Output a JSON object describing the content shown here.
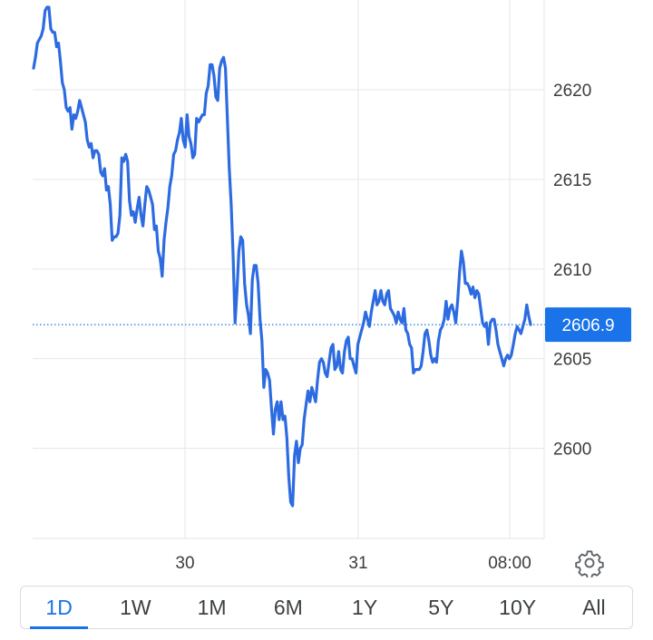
{
  "chart_data": {
    "type": "line",
    "x_tick_labels": [
      "30",
      "31",
      "08:00"
    ],
    "y_ticks": [
      2600,
      2605,
      2610,
      2615,
      2620
    ],
    "ylim": [
      2595,
      2624.8
    ],
    "grid": true,
    "current_price": 2606.9,
    "current_price_label": "2606.9",
    "line_color": "#2d6be0",
    "tag_color": "#1a73e8",
    "series": [
      {
        "values": [
          2621.2,
          2621.8,
          2622.6,
          2622.8,
          2623.0,
          2623.4,
          2624.4,
          2624.6,
          2624.6,
          2623.4,
          2623.2,
          2623.2,
          2622.4,
          2622.6,
          2621.6,
          2620.4,
          2620.0,
          2619.0,
          2618.8,
          2619.0,
          2617.8,
          2618.6,
          2618.4,
          2618.8,
          2619.4,
          2619.0,
          2618.6,
          2618.2,
          2617.2,
          2616.8,
          2617.0,
          2616.2,
          2616.6,
          2616.6,
          2616.4,
          2615.4,
          2615.2,
          2615.6,
          2614.4,
          2614.6,
          2613.6,
          2611.6,
          2611.8,
          2611.8,
          2612.0,
          2613.0,
          2616.2,
          2616.0,
          2616.4,
          2616.0,
          2613.8,
          2613.0,
          2613.2,
          2612.6,
          2613.4,
          2614.0,
          2613.0,
          2612.4,
          2613.6,
          2614.6,
          2614.4,
          2614.0,
          2613.6,
          2612.2,
          2612.4,
          2611.0,
          2610.6,
          2609.6,
          2611.6,
          2612.6,
          2613.4,
          2614.6,
          2615.2,
          2616.4,
          2616.6,
          2617.2,
          2617.6,
          2618.4,
          2617.2,
          2616.8,
          2618.6,
          2617.4,
          2617.0,
          2616.2,
          2616.4,
          2618.4,
          2618.2,
          2618.4,
          2618.6,
          2618.6,
          2619.8,
          2620.2,
          2621.4,
          2621.4,
          2620.8,
          2619.6,
          2619.4,
          2621.2,
          2621.6,
          2621.8,
          2621.2,
          2618.4,
          2615.6,
          2613.6,
          2610.8,
          2607.0,
          2608.8,
          2611.0,
          2611.8,
          2611.6,
          2609.2,
          2608.0,
          2607.4,
          2606.4,
          2609.4,
          2610.2,
          2610.2,
          2609.2,
          2607.2,
          2606.0,
          2603.4,
          2604.4,
          2604.2,
          2603.8,
          2602.2,
          2600.8,
          2602.2,
          2602.6,
          2601.6,
          2602.6,
          2601.6,
          2601.8,
          2600.6,
          2598.4,
          2597.0,
          2596.8,
          2599.6,
          2600.4,
          2599.2,
          2600.0,
          2600.2,
          2601.6,
          2602.4,
          2603.2,
          2602.6,
          2603.4,
          2603.0,
          2602.6,
          2603.8,
          2604.8,
          2605.0,
          2604.8,
          2604.2,
          2604.0,
          2604.8,
          2605.6,
          2605.8,
          2604.4,
          2604.6,
          2605.4,
          2604.4,
          2604.2,
          2605.4,
          2606.0,
          2606.2,
          2605.0,
          2605.0,
          2604.6,
          2604.2,
          2605.8,
          2606.2,
          2606.6,
          2607.0,
          2607.6,
          2607.2,
          2606.8,
          2607.6,
          2608.2,
          2608.8,
          2608.0,
          2608.2,
          2608.8,
          2608.2,
          2608.0,
          2608.6,
          2608.8,
          2607.8,
          2607.6,
          2607.4,
          2607.0,
          2607.6,
          2607.2,
          2607.0,
          2607.8,
          2606.6,
          2606.4,
          2605.8,
          2605.6,
          2604.2,
          2604.4,
          2604.4,
          2604.4,
          2604.6,
          2605.4,
          2606.4,
          2606.6,
          2606.0,
          2605.2,
          2604.8,
          2605.0,
          2604.8,
          2606.0,
          2606.6,
          2606.8,
          2607.2,
          2608.2,
          2607.2,
          2607.8,
          2608.0,
          2607.6,
          2607.0,
          2608.2,
          2609.8,
          2611.0,
          2610.4,
          2609.2,
          2609.2,
          2609.0,
          2608.6,
          2609.0,
          2608.4,
          2608.8,
          2608.6,
          2607.8,
          2607.0,
          2606.8,
          2607.0,
          2605.8,
          2607.0,
          2607.2,
          2607.2,
          2606.6,
          2605.8,
          2605.4,
          2605.0,
          2604.6,
          2605.0,
          2605.2,
          2605.0,
          2605.2,
          2605.8,
          2606.4,
          2606.8,
          2606.6,
          2606.4,
          2606.8,
          2607.2,
          2608.0,
          2607.4,
          2606.9
        ]
      }
    ]
  },
  "controls": {
    "settings_icon": "gear-icon",
    "ranges": [
      "1D",
      "1W",
      "1M",
      "6M",
      "1Y",
      "5Y",
      "10Y",
      "All"
    ],
    "active_range": "1D"
  }
}
